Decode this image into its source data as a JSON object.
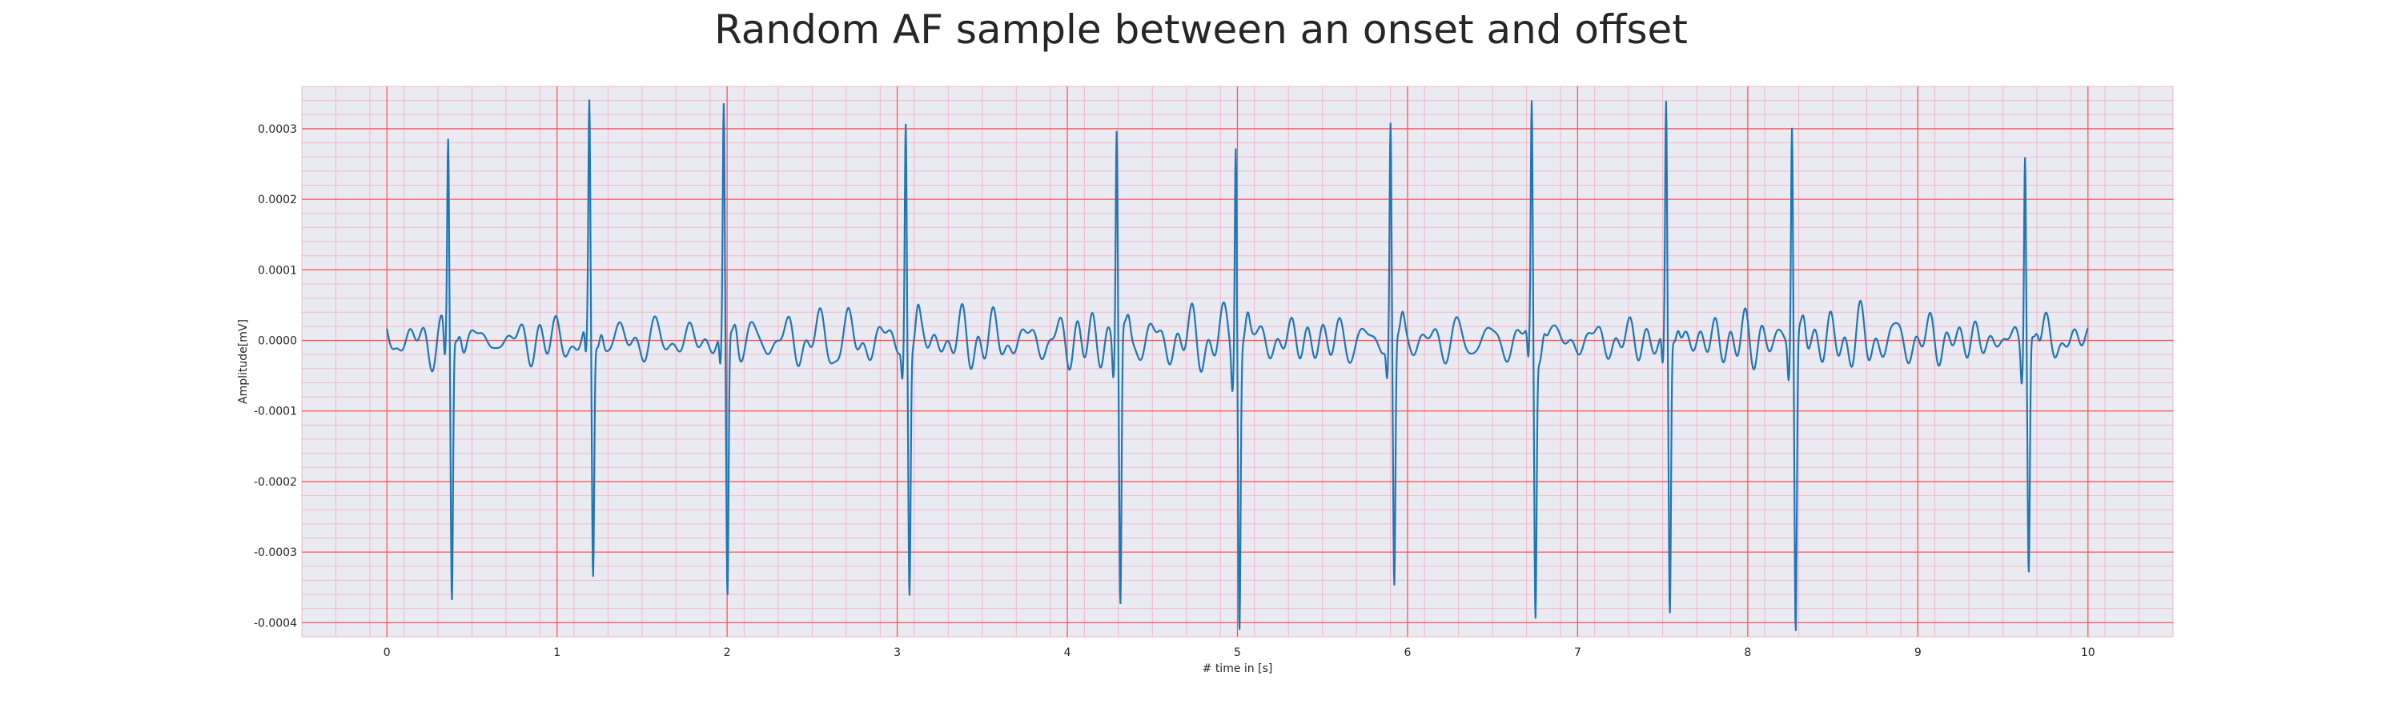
{
  "chart_data": {
    "type": "line",
    "title": "Random AF sample between an onset and offset",
    "xlabel": "# time in [s]",
    "ylabel": "Amplitude[mV]",
    "xlim": [
      -0.5,
      10.5
    ],
    "ylim": [
      -0.00042,
      0.00036
    ],
    "xticks": [
      0,
      1,
      2,
      3,
      4,
      5,
      6,
      7,
      8,
      9,
      10
    ],
    "xtick_labels": [
      "0",
      "1",
      "2",
      "3",
      "4",
      "5",
      "6",
      "7",
      "8",
      "9",
      "10"
    ],
    "yticks": [
      -0.0004,
      -0.0003,
      -0.0002,
      -0.0001,
      0.0,
      0.0001,
      0.0002,
      0.0003
    ],
    "ytick_labels": [
      "-0.0004",
      "-0.0003",
      "-0.0002",
      "-0.0001",
      "0.0000",
      "0.0001",
      "0.0002",
      "0.0003"
    ],
    "grid": true,
    "x_range": [
      0,
      10
    ],
    "beats": [
      {
        "t": 0.36,
        "peak": 0.00028,
        "trough": -0.00035
      },
      {
        "t": 1.19,
        "peak": 0.00031,
        "trough": -0.000325
      },
      {
        "t": 1.98,
        "peak": 0.00032,
        "trough": -0.000355
      },
      {
        "t": 3.05,
        "peak": 0.00031,
        "trough": -0.00033
      },
      {
        "t": 4.29,
        "peak": 0.00031,
        "trough": -0.000365
      },
      {
        "t": 4.99,
        "peak": 0.00031,
        "trough": -0.000365
      },
      {
        "t": 5.9,
        "peak": 0.000305,
        "trough": -0.000335
      },
      {
        "t": 6.73,
        "peak": 0.000325,
        "trough": -0.00036
      },
      {
        "t": 7.52,
        "peak": 0.000325,
        "trough": -0.000375
      },
      {
        "t": 8.26,
        "peak": 0.00032,
        "trough": -0.00039
      },
      {
        "t": 9.63,
        "peak": 0.00028,
        "trough": -0.00031
      }
    ],
    "colors": {
      "line": "#1f77b4",
      "background": "#eaeaf2",
      "major_grid": "#ff5555",
      "minor_grid": "#f2b8c8"
    }
  }
}
